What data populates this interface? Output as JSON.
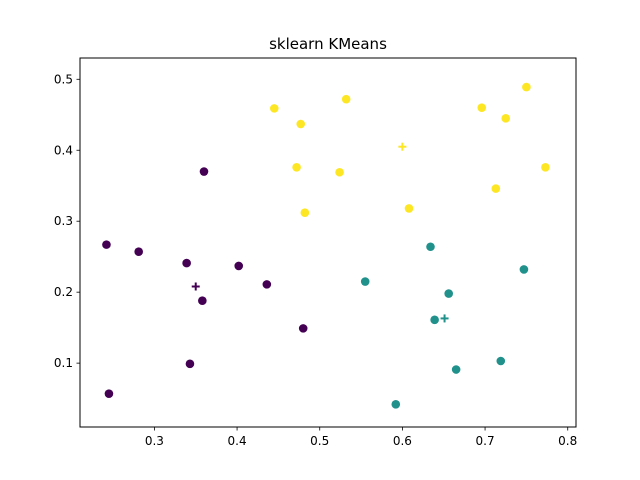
{
  "chart_data": {
    "type": "scatter",
    "title": "sklearn KMeans",
    "xlabel": "",
    "ylabel": "",
    "xlim": [
      0.21,
      0.81
    ],
    "ylim": [
      0.01,
      0.53
    ],
    "xticks": [
      0.3,
      0.4,
      0.5,
      0.6,
      0.7,
      0.8
    ],
    "yticks": [
      0.1,
      0.2,
      0.3,
      0.4,
      0.5
    ],
    "xtick_labels": [
      "0.3",
      "0.4",
      "0.5",
      "0.6",
      "0.7",
      "0.8"
    ],
    "ytick_labels": [
      "0.1",
      "0.2",
      "0.3",
      "0.4",
      "0.5"
    ],
    "grid": false,
    "legend": false,
    "series": [
      {
        "cluster": 0,
        "color": "#440154",
        "points": [
          [
            0.242,
            0.267
          ],
          [
            0.281,
            0.257
          ],
          [
            0.339,
            0.241
          ],
          [
            0.36,
            0.37
          ],
          [
            0.402,
            0.237
          ],
          [
            0.436,
            0.211
          ],
          [
            0.358,
            0.188
          ],
          [
            0.48,
            0.149
          ],
          [
            0.343,
            0.099
          ],
          [
            0.245,
            0.057
          ]
        ],
        "centroid": [
          0.35,
          0.208
        ]
      },
      {
        "cluster": 1,
        "color": "#21918c",
        "points": [
          [
            0.634,
            0.264
          ],
          [
            0.555,
            0.215
          ],
          [
            0.656,
            0.198
          ],
          [
            0.747,
            0.232
          ],
          [
            0.639,
            0.161
          ],
          [
            0.719,
            0.103
          ],
          [
            0.665,
            0.091
          ],
          [
            0.592,
            0.042
          ]
        ],
        "centroid": [
          0.651,
          0.163
        ]
      },
      {
        "cluster": 2,
        "color": "#fde725",
        "points": [
          [
            0.445,
            0.459
          ],
          [
            0.477,
            0.437
          ],
          [
            0.532,
            0.472
          ],
          [
            0.472,
            0.376
          ],
          [
            0.524,
            0.369
          ],
          [
            0.482,
            0.312
          ],
          [
            0.608,
            0.318
          ],
          [
            0.696,
            0.46
          ],
          [
            0.75,
            0.489
          ],
          [
            0.725,
            0.445
          ],
          [
            0.773,
            0.376
          ],
          [
            0.713,
            0.346
          ]
        ],
        "centroid": [
          0.6,
          0.405
        ]
      }
    ]
  }
}
